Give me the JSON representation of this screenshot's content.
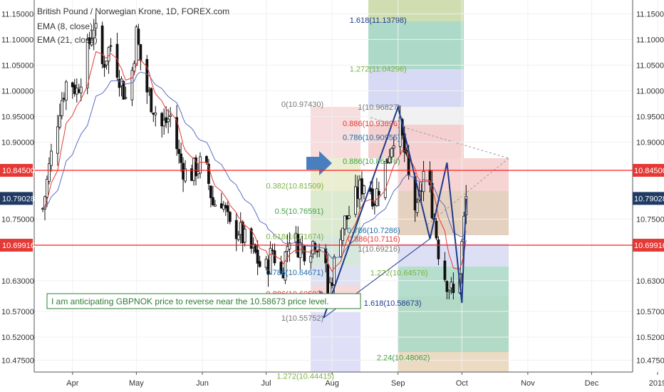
{
  "chart_data": {
    "type": "candlestick",
    "title": "British Pound / Norwegian Krone, 1D, FOREX.com",
    "indicators": [
      "EMA (8, close)",
      "EMA (21, close)"
    ],
    "ylim": [
      10.445,
      11.17
    ],
    "y_ticks": [
      "11.15000",
      "11.10000",
      "11.05000",
      "11.00000",
      "10.95000",
      "10.90000",
      "10.75000",
      "10.63000",
      "10.57000",
      "10.52000",
      "10.47500"
    ],
    "x_ticks": [
      {
        "label": "Apr",
        "day": 14
      },
      {
        "label": "May",
        "day": 44
      },
      {
        "label": "Jun",
        "day": 75
      },
      {
        "label": "Jul",
        "day": 105
      },
      {
        "label": "Aug",
        "day": 136
      },
      {
        "label": "Sep",
        "day": 167
      },
      {
        "label": "Oct",
        "day": 197
      },
      {
        "label": "Nov",
        "day": 228
      },
      {
        "label": "Dec",
        "day": 258
      },
      {
        "label": "2019",
        "day": 289
      }
    ],
    "price_badges": [
      {
        "label": "10.84500",
        "value": 10.845,
        "color": "#e53935"
      },
      {
        "label": "10.79028",
        "value": 10.79028,
        "color": "#1f3b63"
      },
      {
        "label": "10.69916",
        "value": 10.69916,
        "color": "#e53935"
      }
    ],
    "horizontal_lines": [
      {
        "value": 10.845,
        "color": "#ff1e1e"
      },
      {
        "value": 10.69916,
        "color": "#ff1e1e"
      }
    ],
    "price_waypoints": [
      {
        "day": 0,
        "value": 10.77
      },
      {
        "day": 3,
        "value": 10.85
      },
      {
        "day": 8,
        "value": 10.97
      },
      {
        "day": 12,
        "value": 11.03
      },
      {
        "day": 16,
        "value": 11.0
      },
      {
        "day": 20,
        "value": 11.06
      },
      {
        "day": 24,
        "value": 11.13
      },
      {
        "day": 28,
        "value": 11.05
      },
      {
        "day": 32,
        "value": 11.09
      },
      {
        "day": 36,
        "value": 11.03
      },
      {
        "day": 40,
        "value": 10.97
      },
      {
        "day": 44,
        "value": 11.11
      },
      {
        "day": 48,
        "value": 11.01
      },
      {
        "day": 52,
        "value": 10.97
      },
      {
        "day": 56,
        "value": 10.93
      },
      {
        "day": 60,
        "value": 10.95
      },
      {
        "day": 64,
        "value": 10.87
      },
      {
        "day": 68,
        "value": 10.83
      },
      {
        "day": 72,
        "value": 10.85
      },
      {
        "day": 76,
        "value": 10.86
      },
      {
        "day": 80,
        "value": 10.78
      },
      {
        "day": 84,
        "value": 10.79
      },
      {
        "day": 88,
        "value": 10.73
      },
      {
        "day": 92,
        "value": 10.73
      },
      {
        "day": 96,
        "value": 10.7
      },
      {
        "day": 100,
        "value": 10.68
      },
      {
        "day": 104,
        "value": 10.64
      },
      {
        "day": 108,
        "value": 10.69
      },
      {
        "day": 112,
        "value": 10.64
      },
      {
        "day": 116,
        "value": 10.72
      },
      {
        "day": 120,
        "value": 10.7
      },
      {
        "day": 124,
        "value": 10.69
      },
      {
        "day": 128,
        "value": 10.71
      },
      {
        "day": 132,
        "value": 10.69
      },
      {
        "day": 134,
        "value": 10.6
      },
      {
        "day": 136,
        "value": 10.64
      },
      {
        "day": 140,
        "value": 10.73
      },
      {
        "day": 144,
        "value": 10.76
      },
      {
        "day": 148,
        "value": 10.8
      },
      {
        "day": 152,
        "value": 10.83
      },
      {
        "day": 156,
        "value": 10.79
      },
      {
        "day": 160,
        "value": 10.84
      },
      {
        "day": 164,
        "value": 10.9
      },
      {
        "day": 167,
        "value": 10.95
      },
      {
        "day": 170,
        "value": 10.88
      },
      {
        "day": 173,
        "value": 10.8
      },
      {
        "day": 176,
        "value": 10.76
      },
      {
        "day": 179,
        "value": 10.84
      },
      {
        "day": 182,
        "value": 10.8
      },
      {
        "day": 184,
        "value": 10.75
      },
      {
        "day": 187,
        "value": 10.66
      },
      {
        "day": 190,
        "value": 10.63
      },
      {
        "day": 193,
        "value": 10.6
      },
      {
        "day": 195,
        "value": 10.61
      },
      {
        "day": 197,
        "value": 10.7
      },
      {
        "day": 199,
        "value": 10.79
      }
    ],
    "harmonic_pattern": [
      {
        "day": 132,
        "value": 10.55752
      },
      {
        "day": 167,
        "value": 10.96827
      },
      {
        "day": 182,
        "value": 10.7116
      },
      {
        "day": 190,
        "value": 10.86
      },
      {
        "day": 197,
        "value": 10.58673
      },
      {
        "day": 199,
        "value": 10.79
      }
    ],
    "fib_levels": [
      {
        "label": "1.618(11.13798)",
        "day": 171,
        "value": 11.13798,
        "color": "#1f3b8f"
      },
      {
        "label": "1.272(11.04296)",
        "day": 171,
        "value": 11.04296,
        "color": "#7cb342"
      },
      {
        "label": "0(10.97430)",
        "day": 132,
        "value": 10.9743,
        "color": "#777777"
      },
      {
        "label": "1(10.96827)",
        "day": 168,
        "value": 10.96827,
        "color": "#777777"
      },
      {
        "label": "0.886(10.93696)",
        "day": 168,
        "value": 10.93696,
        "color": "#e53935"
      },
      {
        "label": "0.786(10.90955)",
        "day": 168,
        "value": 10.90955,
        "color": "#1f6fa8"
      },
      {
        "label": "0.886(10.86276)",
        "day": 168,
        "value": 10.86276,
        "color": "#43a047"
      },
      {
        "label": "0.382(10.81509)",
        "day": 132,
        "value": 10.81509,
        "color": "#7cb342"
      },
      {
        "label": "0.5(10.76591)",
        "day": 132,
        "value": 10.76591,
        "color": "#43a047"
      },
      {
        "label": "0.618(10.71674)",
        "day": 132,
        "value": 10.71674,
        "color": "#7cb342"
      },
      {
        "label": "0.786(10.64671)",
        "day": 132,
        "value": 10.64671,
        "color": "#1f6fa8"
      },
      {
        "label": "0.886(10.60503)",
        "day": 132,
        "value": 10.60503,
        "color": "#e53935"
      },
      {
        "label": "1(10.55752)",
        "day": 132,
        "value": 10.55752,
        "color": "#777777"
      },
      {
        "label": "0.786(10.7286)",
        "day": 168,
        "value": 10.7286,
        "color": "#1f6fa8"
      },
      {
        "label": "0.886(10.7116)",
        "day": 168,
        "value": 10.7116,
        "color": "#e53935"
      },
      {
        "label": "1(10.69216)",
        "day": 168,
        "value": 10.69216,
        "color": "#777777"
      },
      {
        "label": "1.272(10.64576)",
        "day": 181,
        "value": 10.64576,
        "color": "#7cb342"
      },
      {
        "label": "1.618(10.58673)",
        "day": 178,
        "value": 10.58673,
        "color": "#1f3b8f"
      },
      {
        "label": "2.24(10.48062)",
        "day": 182,
        "value": 10.48062,
        "color": "#43a047"
      },
      {
        "label": "1.272(10.44415)",
        "day": 137,
        "value": 10.44415,
        "color": "#7cb342"
      }
    ],
    "annotation": "I am anticipating GBPNOK price to reverse near the 10.58673 price level.",
    "colors": {
      "up_candle": "#ffffff",
      "down_candle": "#111111",
      "ema_fast": "#e53935",
      "ema_slow": "#5c6bc0",
      "pattern": "#1e3a8a",
      "arrow": "#4a7fbf"
    }
  }
}
